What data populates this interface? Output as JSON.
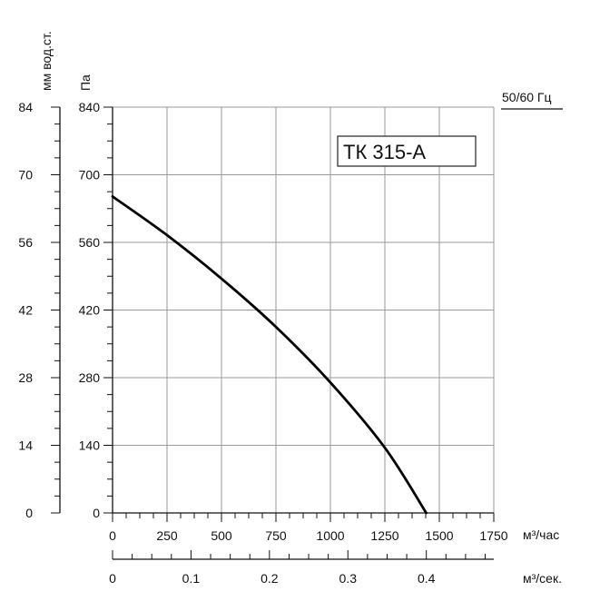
{
  "chart_data": {
    "type": "line",
    "model": "ТК 315-А",
    "frequency_label": "50/60 Гц",
    "y_left_outer_label": "мм вод.ст.",
    "y_left_inner_label": "Па",
    "x_bottom_label": "м³/час",
    "x_second_label": "м³/сек.",
    "x_ticks": [
      "0",
      "250",
      "500",
      "750",
      "1000",
      "1250",
      "1500",
      "1750"
    ],
    "x_second_ticks": [
      "0",
      "0.1",
      "0.2",
      "0.3",
      "0.4"
    ],
    "y_pa_ticks": [
      "0",
      "140",
      "280",
      "420",
      "560",
      "700",
      "840"
    ],
    "y_mm_ticks": [
      "0",
      "14",
      "28",
      "42",
      "56",
      "70",
      "84"
    ],
    "xlim": [
      0,
      1750
    ],
    "ylim": [
      0,
      840
    ],
    "x2lim": [
      0,
      0.486
    ],
    "y2lim": [
      0,
      84
    ],
    "grid": true,
    "series": [
      {
        "color": "#000000",
        "points": [
          [
            0,
            655
          ],
          [
            250,
            575
          ],
          [
            500,
            485
          ],
          [
            750,
            385
          ],
          [
            1000,
            270
          ],
          [
            1250,
            135
          ],
          [
            1440,
            0
          ]
        ]
      }
    ]
  }
}
